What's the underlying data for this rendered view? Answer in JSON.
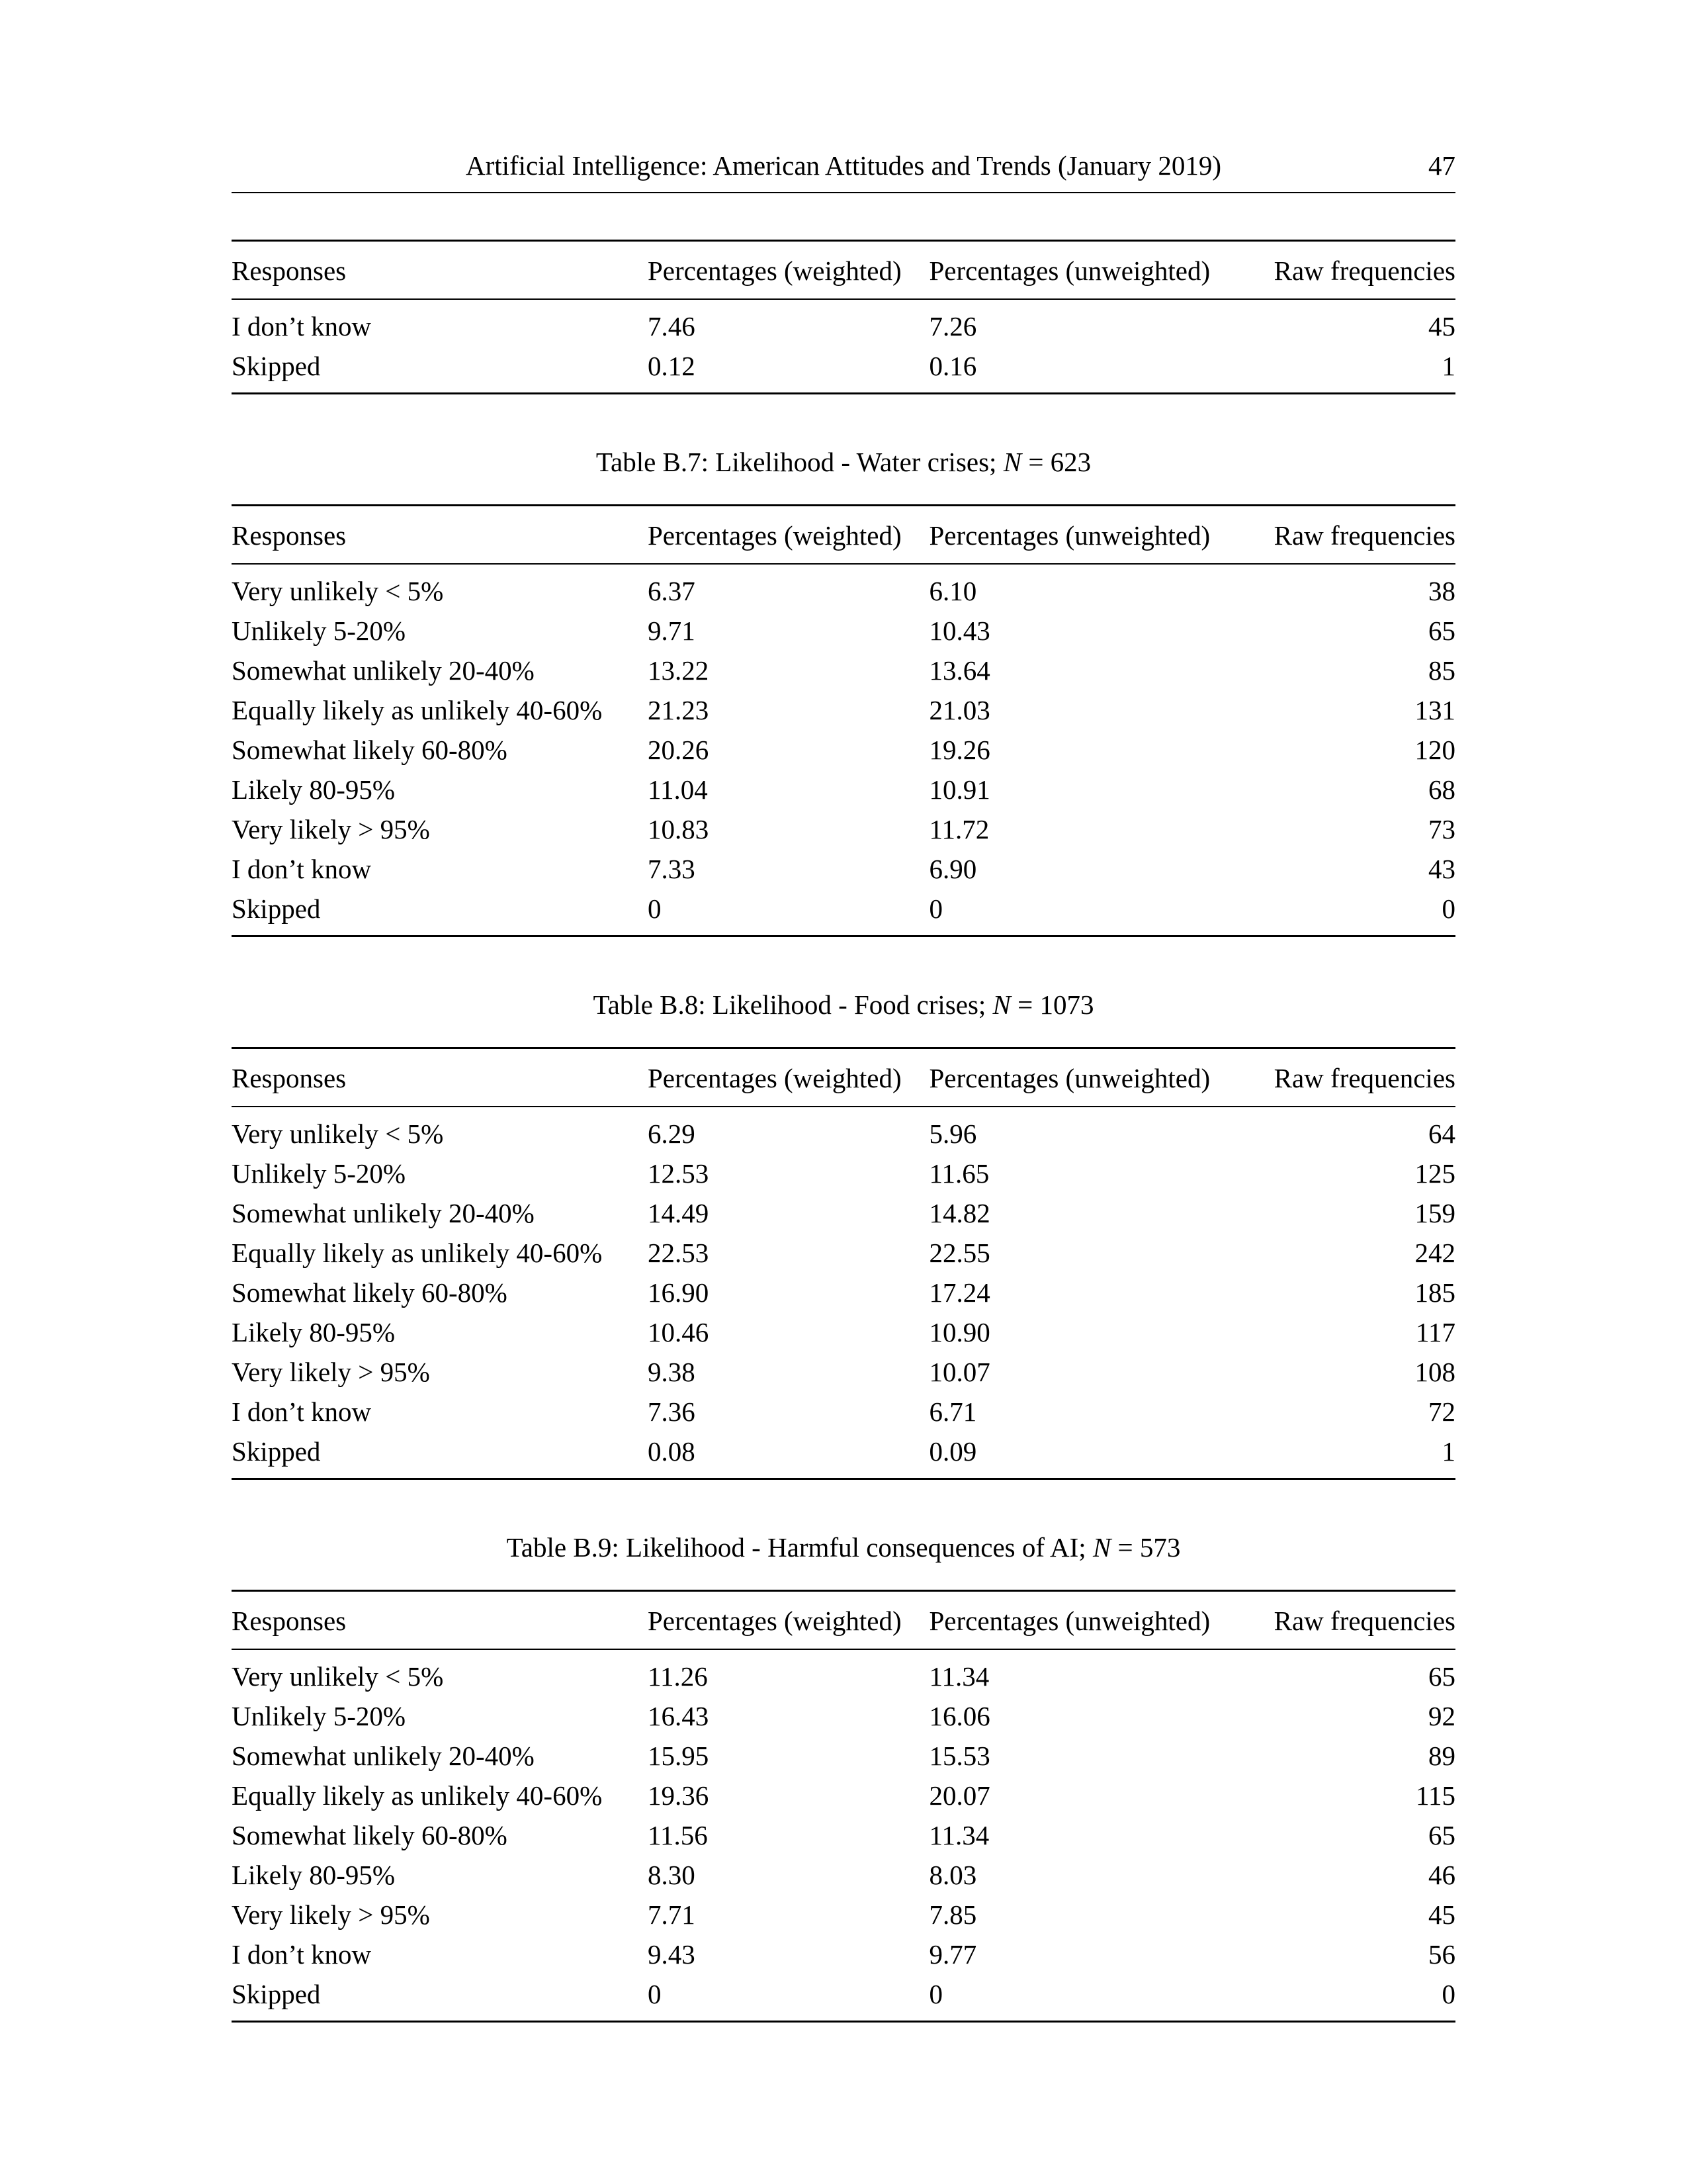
{
  "header": {
    "title": "Artificial Intelligence: American Attitudes and Trends (January 2019)",
    "page_number": "47"
  },
  "columns": {
    "responses": "Responses",
    "weighted": "Percentages (weighted)",
    "unweighted": "Percentages (unweighted)",
    "raw": "Raw frequencies"
  },
  "table_cont": {
    "rows": [
      {
        "r": "I don’t know",
        "w": "7.46",
        "u": "7.26",
        "f": "45"
      },
      {
        "r": "Skipped",
        "w": "0.12",
        "u": "0.16",
        "f": "1"
      }
    ]
  },
  "table_b7": {
    "caption_pre": "Table B.7: Likelihood - Water crises; ",
    "caption_N": "N",
    "caption_post": " = 623",
    "rows": [
      {
        "r": "Very unlikely < 5%",
        "w": "6.37",
        "u": "6.10",
        "f": "38"
      },
      {
        "r": "Unlikely 5-20%",
        "w": "9.71",
        "u": "10.43",
        "f": "65"
      },
      {
        "r": "Somewhat unlikely 20-40%",
        "w": "13.22",
        "u": "13.64",
        "f": "85"
      },
      {
        "r": "Equally likely as unlikely 40-60%",
        "w": "21.23",
        "u": "21.03",
        "f": "131"
      },
      {
        "r": "Somewhat likely 60-80%",
        "w": "20.26",
        "u": "19.26",
        "f": "120"
      },
      {
        "r": "Likely 80-95%",
        "w": "11.04",
        "u": "10.91",
        "f": "68"
      },
      {
        "r": "Very likely > 95%",
        "w": "10.83",
        "u": "11.72",
        "f": "73"
      },
      {
        "r": "I don’t know",
        "w": "7.33",
        "u": "6.90",
        "f": "43"
      },
      {
        "r": "Skipped",
        "w": "0",
        "u": "0",
        "f": "0"
      }
    ]
  },
  "table_b8": {
    "caption_pre": "Table B.8: Likelihood - Food crises; ",
    "caption_N": "N",
    "caption_post": " = 1073",
    "rows": [
      {
        "r": "Very unlikely < 5%",
        "w": "6.29",
        "u": "5.96",
        "f": "64"
      },
      {
        "r": "Unlikely 5-20%",
        "w": "12.53",
        "u": "11.65",
        "f": "125"
      },
      {
        "r": "Somewhat unlikely 20-40%",
        "w": "14.49",
        "u": "14.82",
        "f": "159"
      },
      {
        "r": "Equally likely as unlikely 40-60%",
        "w": "22.53",
        "u": "22.55",
        "f": "242"
      },
      {
        "r": "Somewhat likely 60-80%",
        "w": "16.90",
        "u": "17.24",
        "f": "185"
      },
      {
        "r": "Likely 80-95%",
        "w": "10.46",
        "u": "10.90",
        "f": "117"
      },
      {
        "r": "Very likely > 95%",
        "w": "9.38",
        "u": "10.07",
        "f": "108"
      },
      {
        "r": "I don’t know",
        "w": "7.36",
        "u": "6.71",
        "f": "72"
      },
      {
        "r": "Skipped",
        "w": "0.08",
        "u": "0.09",
        "f": "1"
      }
    ]
  },
  "table_b9": {
    "caption_pre": "Table B.9: Likelihood - Harmful consequences of AI; ",
    "caption_N": "N",
    "caption_post": " = 573",
    "rows": [
      {
        "r": "Very unlikely < 5%",
        "w": "11.26",
        "u": "11.34",
        "f": "65"
      },
      {
        "r": "Unlikely 5-20%",
        "w": "16.43",
        "u": "16.06",
        "f": "92"
      },
      {
        "r": "Somewhat unlikely 20-40%",
        "w": "15.95",
        "u": "15.53",
        "f": "89"
      },
      {
        "r": "Equally likely as unlikely 40-60%",
        "w": "19.36",
        "u": "20.07",
        "f": "115"
      },
      {
        "r": "Somewhat likely 60-80%",
        "w": "11.56",
        "u": "11.34",
        "f": "65"
      },
      {
        "r": "Likely 80-95%",
        "w": "8.30",
        "u": "8.03",
        "f": "46"
      },
      {
        "r": "Very likely > 95%",
        "w": "7.71",
        "u": "7.85",
        "f": "45"
      },
      {
        "r": "I don’t know",
        "w": "9.43",
        "u": "9.77",
        "f": "56"
      },
      {
        "r": "Skipped",
        "w": "0",
        "u": "0",
        "f": "0"
      }
    ]
  }
}
